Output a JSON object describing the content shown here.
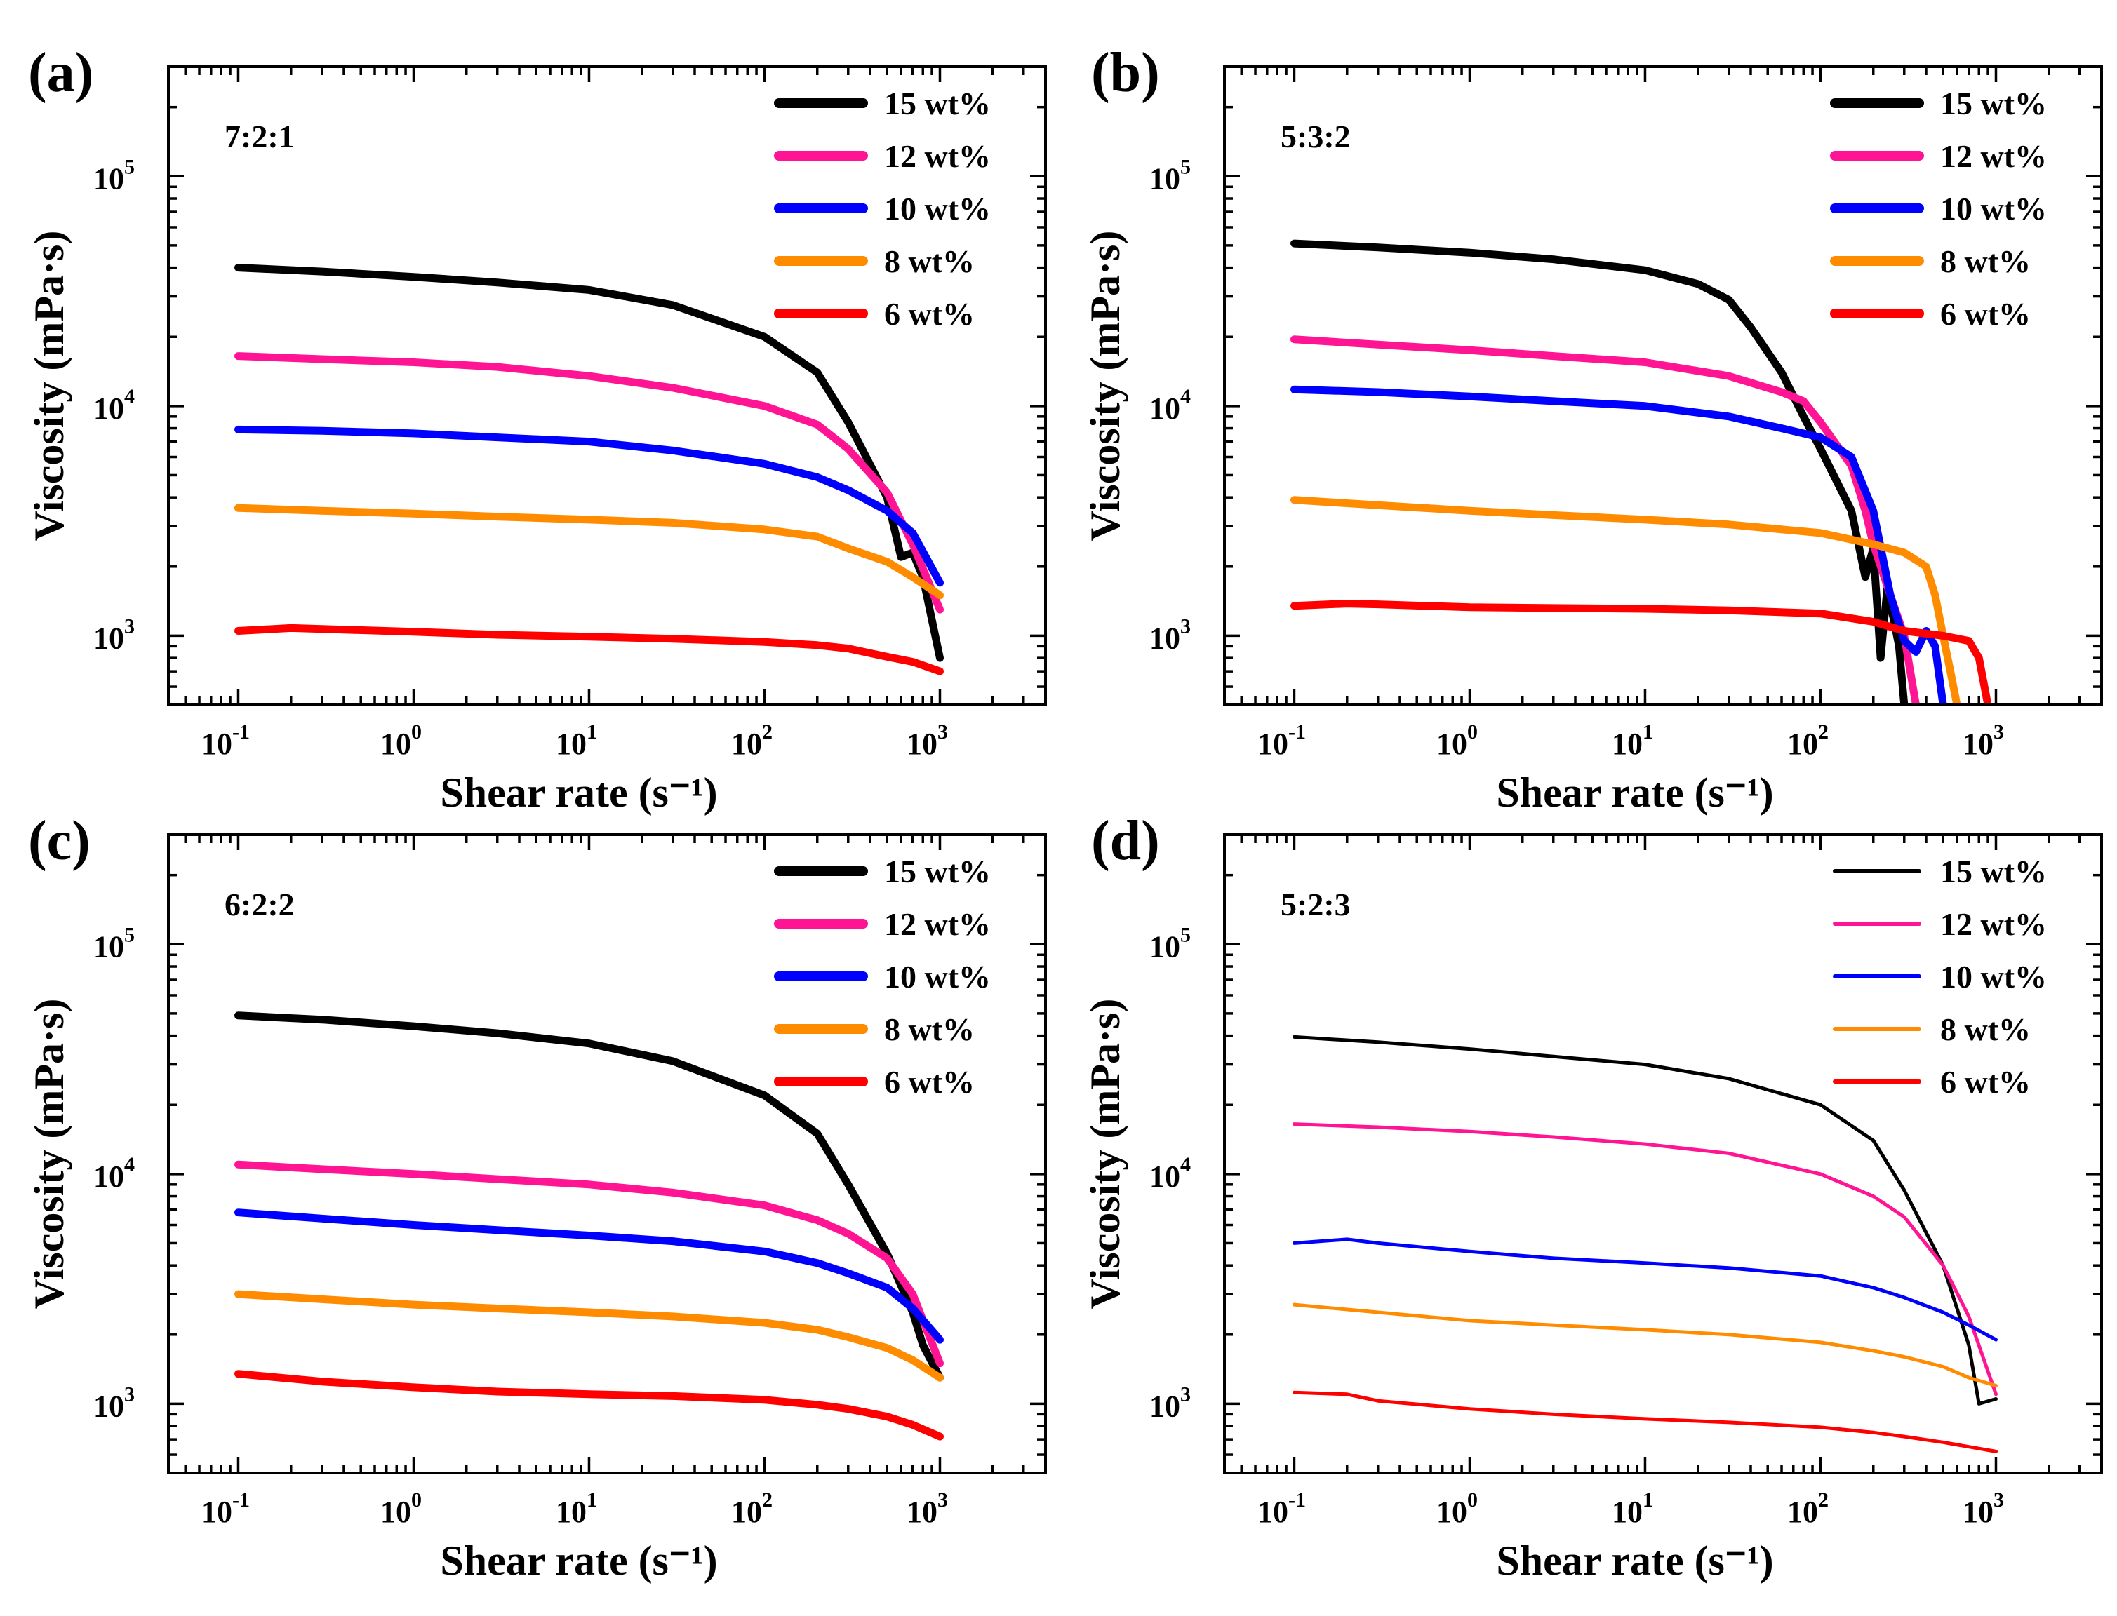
{
  "chart_data": [
    {
      "type": "line",
      "panel_label": "(a)",
      "annotation": "7:2:1",
      "xlabel": "Shear rate (s⁻¹)",
      "ylabel": "Viscosity (mPa·s)",
      "xscale": "log",
      "yscale": "log",
      "xlim": [
        0.04,
        4000
      ],
      "ylim": [
        500,
        300000
      ],
      "xticks": [
        {
          "value": 0.1,
          "base": "10",
          "exp": "-1"
        },
        {
          "value": 1,
          "base": "10",
          "exp": "0"
        },
        {
          "value": 10,
          "base": "10",
          "exp": "1"
        },
        {
          "value": 100,
          "base": "10",
          "exp": "2"
        },
        {
          "value": 1000,
          "base": "10",
          "exp": "3"
        }
      ],
      "yticks": [
        {
          "value": 1000,
          "base": "10",
          "exp": "3"
        },
        {
          "value": 10000,
          "base": "10",
          "exp": "4"
        },
        {
          "value": 100000,
          "base": "10",
          "exp": "5"
        }
      ],
      "legend_position": "top-right",
      "line_style": "thick",
      "series": [
        {
          "name": "15 wt%",
          "color": "#000000",
          "x": [
            0.1,
            0.3,
            1,
            3,
            10,
            30,
            100,
            200,
            300,
            500,
            600,
            700,
            800,
            1000
          ],
          "y": [
            40000,
            38500,
            36500,
            34500,
            32000,
            27500,
            20000,
            14000,
            8500,
            4000,
            2200,
            2300,
            1800,
            800
          ]
        },
        {
          "name": "12 wt%",
          "color": "#ff1493",
          "x": [
            0.1,
            0.3,
            1,
            3,
            10,
            30,
            100,
            200,
            300,
            500,
            700,
            1000
          ],
          "y": [
            16500,
            16000,
            15500,
            14800,
            13500,
            12000,
            10000,
            8300,
            6500,
            4200,
            2500,
            1300
          ]
        },
        {
          "name": "10 wt%",
          "color": "#0000ff",
          "x": [
            0.1,
            0.3,
            1,
            3,
            10,
            30,
            100,
            200,
            300,
            500,
            700,
            1000
          ],
          "y": [
            7900,
            7800,
            7600,
            7300,
            7000,
            6400,
            5600,
            4900,
            4300,
            3500,
            2800,
            1700
          ]
        },
        {
          "name": "8 wt%",
          "color": "#ff8c00",
          "x": [
            0.1,
            0.3,
            1,
            3,
            10,
            30,
            100,
            200,
            300,
            500,
            700,
            1000
          ],
          "y": [
            3600,
            3500,
            3400,
            3300,
            3200,
            3100,
            2900,
            2700,
            2400,
            2100,
            1800,
            1500
          ]
        },
        {
          "name": "6 wt%",
          "color": "#ff0000",
          "x": [
            0.1,
            0.2,
            0.3,
            1,
            3,
            10,
            30,
            100,
            200,
            300,
            500,
            700,
            1000
          ],
          "y": [
            1050,
            1080,
            1070,
            1040,
            1010,
            990,
            970,
            940,
            910,
            880,
            810,
            770,
            700
          ]
        }
      ]
    },
    {
      "type": "line",
      "panel_label": "(b)",
      "annotation": "5:3:2",
      "xlabel": "Shear rate (s⁻¹)",
      "ylabel": "Viscosity (mPa·s)",
      "xscale": "log",
      "yscale": "log",
      "xlim": [
        0.04,
        4000
      ],
      "ylim": [
        500,
        300000
      ],
      "xticks": [
        {
          "value": 0.1,
          "base": "10",
          "exp": "-1"
        },
        {
          "value": 1,
          "base": "10",
          "exp": "0"
        },
        {
          "value": 10,
          "base": "10",
          "exp": "1"
        },
        {
          "value": 100,
          "base": "10",
          "exp": "2"
        },
        {
          "value": 1000,
          "base": "10",
          "exp": "3"
        }
      ],
      "yticks": [
        {
          "value": 1000,
          "base": "10",
          "exp": "3"
        },
        {
          "value": 10000,
          "base": "10",
          "exp": "4"
        },
        {
          "value": 100000,
          "base": "10",
          "exp": "5"
        }
      ],
      "legend_position": "top-right",
      "line_style": "thick",
      "series": [
        {
          "name": "15 wt%",
          "color": "#000000",
          "x": [
            0.1,
            0.3,
            1,
            3,
            10,
            20,
            30,
            40,
            60,
            80,
            100,
            150,
            180,
            200,
            220,
            240,
            260,
            280,
            300
          ],
          "y": [
            51000,
            49000,
            46500,
            43500,
            39000,
            34000,
            29000,
            22000,
            14000,
            9000,
            6500,
            3500,
            1800,
            2400,
            800,
            1600,
            1200,
            900,
            500
          ]
        },
        {
          "name": "12 wt%",
          "color": "#ff1493",
          "x": [
            0.1,
            0.3,
            1,
            3,
            10,
            30,
            60,
            80,
            100,
            150,
            180,
            200,
            250,
            300,
            350
          ],
          "y": [
            19500,
            18500,
            17500,
            16500,
            15500,
            13500,
            11500,
            10500,
            8500,
            5500,
            3500,
            2500,
            1500,
            1000,
            500
          ]
        },
        {
          "name": "10 wt%",
          "color": "#0000ff",
          "x": [
            0.1,
            0.3,
            1,
            3,
            10,
            30,
            60,
            100,
            150,
            200,
            250,
            300,
            350,
            400,
            450,
            500
          ],
          "y": [
            11800,
            11500,
            11000,
            10500,
            10000,
            9000,
            8000,
            7300,
            6000,
            3500,
            1500,
            950,
            850,
            1050,
            900,
            500
          ]
        },
        {
          "name": "8 wt%",
          "color": "#ff8c00",
          "x": [
            0.1,
            0.3,
            1,
            3,
            10,
            30,
            100,
            200,
            300,
            400,
            450,
            500,
            550,
            600
          ],
          "y": [
            3900,
            3700,
            3500,
            3350,
            3200,
            3050,
            2800,
            2500,
            2300,
            2000,
            1500,
            1000,
            700,
            500
          ]
        },
        {
          "name": "6 wt%",
          "color": "#ff0000",
          "x": [
            0.1,
            0.2,
            0.3,
            1,
            3,
            10,
            30,
            100,
            200,
            300,
            500,
            700,
            800,
            900
          ],
          "y": [
            1350,
            1380,
            1370,
            1330,
            1320,
            1310,
            1290,
            1250,
            1150,
            1050,
            1000,
            950,
            800,
            500
          ]
        }
      ]
    },
    {
      "type": "line",
      "panel_label": "(c)",
      "annotation": "6:2:2",
      "xlabel": "Shear rate (s⁻¹)",
      "ylabel": "Viscosity (mPa·s)",
      "xscale": "log",
      "yscale": "log",
      "xlim": [
        0.04,
        4000
      ],
      "ylim": [
        500,
        300000
      ],
      "xticks": [
        {
          "value": 0.1,
          "base": "10",
          "exp": "-1"
        },
        {
          "value": 1,
          "base": "10",
          "exp": "0"
        },
        {
          "value": 10,
          "base": "10",
          "exp": "1"
        },
        {
          "value": 100,
          "base": "10",
          "exp": "2"
        },
        {
          "value": 1000,
          "base": "10",
          "exp": "3"
        }
      ],
      "yticks": [
        {
          "value": 1000,
          "base": "10",
          "exp": "3"
        },
        {
          "value": 10000,
          "base": "10",
          "exp": "4"
        },
        {
          "value": 100000,
          "base": "10",
          "exp": "5"
        }
      ],
      "legend_position": "top-right",
      "line_style": "thick",
      "series": [
        {
          "name": "15 wt%",
          "color": "#000000",
          "x": [
            0.1,
            0.3,
            1,
            3,
            10,
            30,
            100,
            200,
            300,
            500,
            700,
            800,
            1000
          ],
          "y": [
            49000,
            47000,
            44000,
            41000,
            37000,
            31000,
            22000,
            15000,
            9000,
            4500,
            2500,
            1800,
            1300
          ]
        },
        {
          "name": "12 wt%",
          "color": "#ff1493",
          "x": [
            0.1,
            0.3,
            1,
            3,
            10,
            30,
            100,
            200,
            300,
            500,
            700,
            1000
          ],
          "y": [
            11000,
            10500,
            10000,
            9500,
            9000,
            8300,
            7300,
            6300,
            5500,
            4300,
            3000,
            1500
          ]
        },
        {
          "name": "10 wt%",
          "color": "#0000ff",
          "x": [
            0.1,
            0.3,
            1,
            3,
            10,
            30,
            100,
            200,
            300,
            500,
            700,
            1000
          ],
          "y": [
            6800,
            6400,
            6000,
            5700,
            5400,
            5100,
            4600,
            4100,
            3700,
            3200,
            2600,
            1900
          ]
        },
        {
          "name": "8 wt%",
          "color": "#ff8c00",
          "x": [
            0.1,
            0.3,
            1,
            3,
            10,
            30,
            100,
            200,
            300,
            500,
            700,
            1000
          ],
          "y": [
            3000,
            2850,
            2700,
            2600,
            2500,
            2400,
            2250,
            2100,
            1950,
            1750,
            1550,
            1300
          ]
        },
        {
          "name": "6 wt%",
          "color": "#ff0000",
          "x": [
            0.1,
            0.3,
            1,
            3,
            10,
            30,
            100,
            200,
            300,
            500,
            700,
            1000
          ],
          "y": [
            1350,
            1250,
            1180,
            1130,
            1100,
            1080,
            1040,
            990,
            950,
            880,
            810,
            720
          ]
        }
      ]
    },
    {
      "type": "line",
      "panel_label": "(d)",
      "annotation": "5:2:3",
      "xlabel": "Shear rate (s⁻¹)",
      "ylabel": "Viscosity (mPa·s)",
      "xscale": "log",
      "yscale": "log",
      "xlim": [
        0.04,
        4000
      ],
      "ylim": [
        500,
        300000
      ],
      "xticks": [
        {
          "value": 0.1,
          "base": "10",
          "exp": "-1"
        },
        {
          "value": 1,
          "base": "10",
          "exp": "0"
        },
        {
          "value": 10,
          "base": "10",
          "exp": "1"
        },
        {
          "value": 100,
          "base": "10",
          "exp": "2"
        },
        {
          "value": 1000,
          "base": "10",
          "exp": "3"
        }
      ],
      "yticks": [
        {
          "value": 1000,
          "base": "10",
          "exp": "3"
        },
        {
          "value": 10000,
          "base": "10",
          "exp": "4"
        },
        {
          "value": 100000,
          "base": "10",
          "exp": "5"
        }
      ],
      "legend_position": "top-right",
      "line_style": "thin",
      "series": [
        {
          "name": "15 wt%",
          "color": "#000000",
          "x": [
            0.1,
            0.3,
            1,
            3,
            10,
            30,
            100,
            200,
            300,
            500,
            700,
            800,
            1000
          ],
          "y": [
            39500,
            37500,
            35000,
            32500,
            30000,
            26000,
            20000,
            14000,
            8500,
            4000,
            1800,
            1000,
            1050
          ]
        },
        {
          "name": "12 wt%",
          "color": "#ff1493",
          "x": [
            0.1,
            0.3,
            1,
            3,
            10,
            30,
            100,
            200,
            300,
            500,
            700,
            1000
          ],
          "y": [
            16500,
            16000,
            15300,
            14500,
            13500,
            12300,
            10000,
            8000,
            6500,
            4000,
            2400,
            1100
          ]
        },
        {
          "name": "10 wt%",
          "color": "#0000ff",
          "x": [
            0.1,
            0.2,
            0.3,
            1,
            3,
            10,
            30,
            100,
            200,
            300,
            500,
            700,
            1000
          ],
          "y": [
            5000,
            5200,
            5000,
            4600,
            4300,
            4100,
            3900,
            3600,
            3200,
            2900,
            2500,
            2200,
            1900
          ]
        },
        {
          "name": "8 wt%",
          "color": "#ff8c00",
          "x": [
            0.1,
            0.3,
            1,
            3,
            10,
            30,
            100,
            200,
            300,
            500,
            700,
            1000
          ],
          "y": [
            2700,
            2500,
            2300,
            2200,
            2100,
            2000,
            1850,
            1700,
            1600,
            1450,
            1300,
            1200
          ]
        },
        {
          "name": "6 wt%",
          "color": "#ff0000",
          "x": [
            0.1,
            0.2,
            0.3,
            1,
            3,
            10,
            30,
            100,
            200,
            300,
            500,
            700,
            1000
          ],
          "y": [
            1120,
            1100,
            1030,
            950,
            900,
            860,
            830,
            790,
            750,
            720,
            680,
            650,
            620
          ]
        }
      ]
    }
  ]
}
